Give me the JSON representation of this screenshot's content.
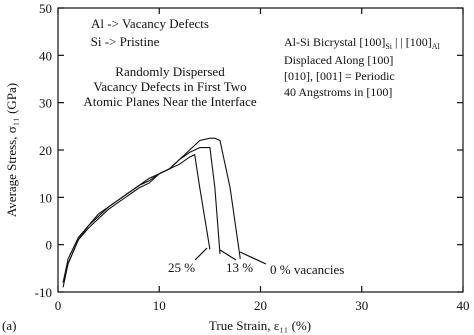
{
  "chart_data": {
    "type": "line",
    "panel_label": "(a)",
    "x_label": "True Strain, ε₁₁ (%)",
    "y_label": "Average Stress, σ₁₁ (GPa)",
    "x": [
      0.5,
      1,
      2,
      3,
      4,
      5,
      6,
      7,
      8,
      9,
      10,
      11,
      12,
      13,
      13.5,
      14,
      15,
      15.5,
      16,
      17,
      18
    ],
    "series": [
      {
        "name": "0 % vacancies",
        "color": "#111111",
        "values": [
          -8,
          -4,
          1,
          4,
          6.5,
          8,
          9.5,
          11,
          12.5,
          13.5,
          15,
          16,
          18,
          20,
          21,
          22,
          22.5,
          22.5,
          22,
          12,
          -3
        ]
      },
      {
        "name": "13 %",
        "color": "#111111",
        "values": [
          -8,
          -3,
          1.5,
          4,
          6,
          8,
          9.5,
          11,
          12.5,
          14,
          15,
          16,
          18,
          19.5,
          20,
          20.5,
          20.5,
          12,
          -2,
          null,
          null
        ]
      },
      {
        "name": "25 %",
        "color": "#111111",
        "values": [
          -9,
          -4,
          1,
          3.5,
          5.5,
          7.5,
          9,
          10.5,
          12,
          13,
          15,
          16,
          17,
          18.5,
          19,
          12,
          -1,
          null,
          null,
          null,
          null
        ]
      }
    ],
    "xlim": [
      0,
      40
    ],
    "xticks": [
      0,
      10,
      20,
      30,
      40
    ],
    "ylim": [
      -10,
      50
    ],
    "yticks": [
      -10,
      0,
      10,
      20,
      30,
      40,
      50
    ],
    "annotations": {
      "defects": [
        "Al -> Vacancy Defects",
        "Si -> Pristine"
      ],
      "description": [
        "Randomly Dispersed",
        "Vacancy Defects in First Two",
        "Atomic Planes Near the Interface"
      ],
      "bicrystal": [
        "Al-Si Bicrystal [100]",
        "Si",
        " | | [100]",
        "Al"
      ],
      "setup": [
        "Displaced Along [100]",
        "[010], [001] = Periodic",
        "40 Angstroms in [100]"
      ]
    }
  }
}
